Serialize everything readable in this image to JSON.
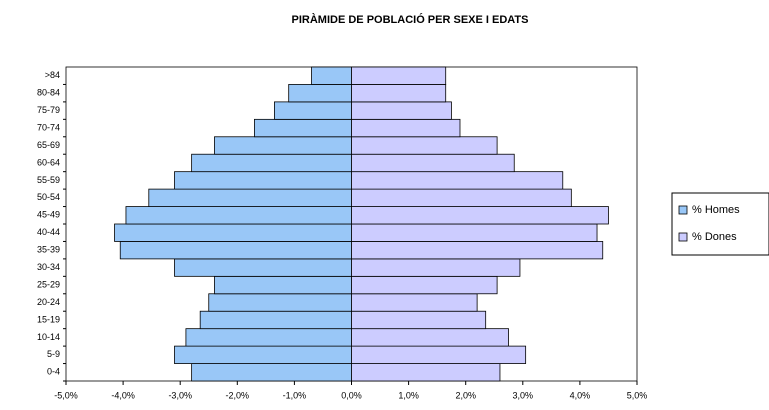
{
  "chart_data": {
    "type": "pyramid",
    "title": "PIRÀMIDE DE POBLACIÓ PER SEXE I EDATS",
    "categories": [
      "0-4",
      "5-9",
      "10-14",
      "15-19",
      "20-24",
      "25-29",
      "30-34",
      "35-39",
      "40-44",
      "45-49",
      "50-54",
      "55-59",
      "60-64",
      "65-69",
      "70-74",
      "75-79",
      "80-84",
      ">84"
    ],
    "series": [
      {
        "name": "% Homes",
        "color": "#99c7f7",
        "values": [
          -2.8,
          -3.1,
          -2.9,
          -2.65,
          -2.5,
          -2.4,
          -3.1,
          -4.05,
          -4.15,
          -3.95,
          -3.55,
          -3.1,
          -2.8,
          -2.4,
          -1.7,
          -1.35,
          -1.1,
          -0.7
        ]
      },
      {
        "name": "% Dones",
        "color": "#ccccff",
        "values": [
          2.6,
          3.05,
          2.75,
          2.35,
          2.2,
          2.55,
          2.95,
          4.4,
          4.3,
          4.5,
          3.85,
          3.7,
          2.85,
          2.55,
          1.9,
          1.75,
          1.65,
          1.65
        ]
      }
    ],
    "xlim": [
      -5,
      5
    ],
    "xticks": [
      {
        "value": -5,
        "label": "-5,0%"
      },
      {
        "value": -4,
        "label": "-4,0%"
      },
      {
        "value": -3,
        "label": "-3,0%"
      },
      {
        "value": -2,
        "label": "-2,0%"
      },
      {
        "value": -1,
        "label": "-1,0%"
      },
      {
        "value": 0,
        "label": "0,0%"
      },
      {
        "value": 1,
        "label": "1,0%"
      },
      {
        "value": 2,
        "label": "2,0%"
      },
      {
        "value": 3,
        "label": "3,0%"
      },
      {
        "value": 4,
        "label": "4,0%"
      },
      {
        "value": 5,
        "label": "5,0%"
      }
    ],
    "legend": "right"
  }
}
